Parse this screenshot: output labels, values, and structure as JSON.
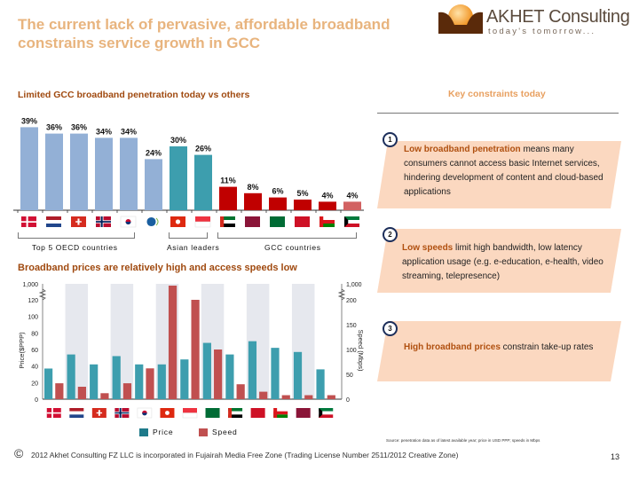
{
  "page": {
    "title": "The current lack of pervasive, affordable broadband constrains service growth in GCC",
    "logo": {
      "name": "AKHET Consulting",
      "tagline": "today's tomorrow...",
      "icon": "sun-over-hills-icon"
    },
    "left_section_title": "Limited GCC broadband penetration today vs others",
    "right_section_title": "Key constraints today",
    "lower_section_title": "Broadband prices are relatively high and access speeds low",
    "constraints": [
      {
        "number": "1",
        "bold": "Low broadband penetration",
        "text": " means many consumers cannot access basic Internet services, hindering development of content and cloud-based applications"
      },
      {
        "number": "2",
        "bold": "Low speeds",
        "text": " limit high bandwidth, low latency application usage (e.g. e-education, e-health, video streaming, telepresence)"
      },
      {
        "number": "3",
        "bold": "High broadband prices",
        "text": " constrain take-up rates"
      }
    ],
    "groups": [
      {
        "label": "Top 5 OECD countries"
      },
      {
        "label": "Asian leaders"
      },
      {
        "label": "GCC countries"
      }
    ],
    "source_note": "Source: penetration data as of latest available year; price in USD PPP; speeds in Mbps",
    "footer": "2012 Akhet Consulting FZ LLC is incorporated in Fujairah Media Free Zone (Trading License Number 2511/2012 Creative Zone)",
    "copyright_symbol": "©",
    "page_number": "13"
  },
  "colors": {
    "oecd": "#93b0d6",
    "asia": "#3d9eae",
    "gcc": "#c00000",
    "gcc_light": "#d26262",
    "price": "#3d9eae",
    "speed": "#c05050",
    "title": "#e8b47e",
    "section": "#a04a10",
    "box": "#fbd8c0"
  },
  "chart_data": [
    {
      "type": "bar",
      "title": "Limited GCC broadband penetration today vs others",
      "categories": [
        "Denmark",
        "Netherlands",
        "Switzerland",
        "Norway",
        "South Korea",
        "OECD",
        "Hong Kong",
        "Singapore",
        "UAE",
        "Qatar",
        "Saudi Arabia",
        "Bahrain",
        "Oman",
        "Kuwait"
      ],
      "values": [
        39,
        36,
        36,
        34,
        34,
        24,
        30,
        26,
        11,
        8,
        6,
        5,
        4,
        4
      ],
      "labels": [
        "39%",
        "36%",
        "36%",
        "34%",
        "34%",
        "24%",
        "30%",
        "26%",
        "11%",
        "8%",
        "6%",
        "5%",
        "4%",
        "4%"
      ],
      "groups": [
        "oecd",
        "oecd",
        "oecd",
        "oecd",
        "oecd",
        "oecd",
        "asia",
        "asia",
        "gcc",
        "gcc",
        "gcc",
        "gcc",
        "gcc",
        "gcc_light"
      ],
      "unit": "%",
      "ylim": [
        0,
        40
      ]
    },
    {
      "type": "bar",
      "title": "Broadband prices are relatively high and access speeds low",
      "categories": [
        "Denmark",
        "Netherlands",
        "Switzerland",
        "Norway",
        "South Korea",
        "Hong Kong",
        "Singapore",
        "Saudi Arabia",
        "UAE",
        "Bahrain",
        "Oman",
        "Qatar",
        "Kuwait"
      ],
      "series": [
        {
          "name": "Price",
          "axis": "left",
          "values": [
            37,
            54,
            42,
            52,
            42,
            42,
            48,
            68,
            54,
            70,
            62,
            57,
            36
          ]
        },
        {
          "name": "Speed",
          "axis": "right",
          "values": [
            32,
            25,
            12,
            32,
            62,
            1000,
            200,
            100,
            30,
            15,
            8,
            8,
            8
          ]
        }
      ],
      "ylabel": "Price($PPP)",
      "y2label": "Speed (Mbps)",
      "yticks": [
        "0",
        "20",
        "40",
        "60",
        "80",
        "100",
        "120",
        "1,000"
      ],
      "y2ticks": [
        "0",
        "50",
        "100",
        "150",
        "200",
        "1,000"
      ],
      "ylim": [
        0,
        120
      ],
      "y2lim": [
        0,
        200
      ],
      "axis_break": true,
      "legend": [
        "Price",
        "Speed"
      ],
      "legend_position": "bottom"
    }
  ]
}
